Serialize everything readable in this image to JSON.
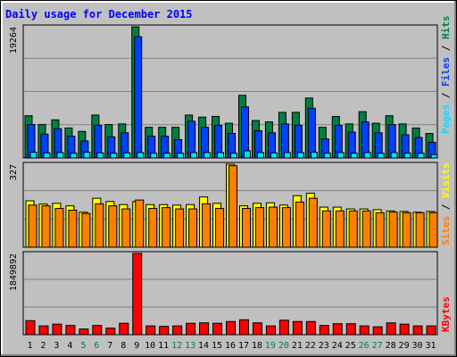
{
  "title": "Daily usage for December 2015",
  "colors": {
    "hits": "#008040",
    "files": "#0040ff",
    "pages": "#00e0ff",
    "visits": "#ffff00",
    "sites": "#ff8000",
    "kbytes": "#ff0000",
    "background": "#c0c0c0",
    "weekend_label": "#008040",
    "weekday_label": "#000000",
    "title": "#0000ff"
  },
  "chart_data": [
    {
      "type": "bar",
      "title": "Daily usage for December 2015",
      "ylabel": "Pages / Files / Hits",
      "ymax_label": "19264",
      "ylim": [
        0,
        19264
      ],
      "categories": [
        "1",
        "2",
        "3",
        "4",
        "5",
        "6",
        "7",
        "8",
        "9",
        "10",
        "11",
        "12",
        "13",
        "14",
        "15",
        "16",
        "17",
        "18",
        "19",
        "20",
        "21",
        "22",
        "23",
        "24",
        "25",
        "26",
        "27",
        "28",
        "29",
        "30",
        "31"
      ],
      "weekend_days": [
        "5",
        "6",
        "12",
        "13",
        "19",
        "20",
        "26",
        "27"
      ],
      "series": [
        {
          "name": "Hits",
          "values": [
            6200,
            4900,
            5600,
            4400,
            3900,
            6300,
            4900,
            5000,
            19264,
            4500,
            4500,
            4500,
            6300,
            6000,
            6100,
            5100,
            9200,
            5500,
            5300,
            6700,
            6700,
            8800,
            4500,
            6100,
            5000,
            6800,
            5100,
            6200,
            5000,
            4400,
            3600
          ]
        },
        {
          "name": "Files",
          "values": [
            4900,
            3500,
            4300,
            3200,
            2500,
            4800,
            3100,
            3700,
            17800,
            3200,
            3200,
            2700,
            5400,
            4500,
            4800,
            3600,
            7500,
            4000,
            3700,
            5000,
            4800,
            7300,
            2800,
            4800,
            3800,
            5300,
            3700,
            4900,
            3400,
            3000,
            2300
          ]
        },
        {
          "name": "Pages",
          "values": [
            850,
            750,
            800,
            700,
            850,
            750,
            700,
            750,
            800,
            700,
            700,
            700,
            800,
            800,
            800,
            700,
            1050,
            800,
            750,
            800,
            800,
            850,
            700,
            800,
            700,
            800,
            700,
            800,
            700,
            700,
            500
          ]
        }
      ]
    },
    {
      "type": "bar",
      "ylabel": "Sites / Visits",
      "ymax_label": "327",
      "ylim": [
        0,
        327
      ],
      "categories": [
        "1",
        "2",
        "3",
        "4",
        "5",
        "6",
        "7",
        "8",
        "9",
        "10",
        "11",
        "12",
        "13",
        "14",
        "15",
        "16",
        "17",
        "18",
        "19",
        "20",
        "21",
        "22",
        "23",
        "24",
        "25",
        "26",
        "27",
        "28",
        "29",
        "30",
        "31"
      ],
      "series": [
        {
          "name": "Visits",
          "values": [
            183,
            170,
            173,
            163,
            138,
            193,
            180,
            168,
            180,
            168,
            168,
            166,
            168,
            198,
            173,
            327,
            163,
            173,
            175,
            166,
            203,
            213,
            158,
            158,
            151,
            151,
            148,
            143,
            141,
            138,
            141
          ]
        },
        {
          "name": "Sites",
          "values": [
            166,
            163,
            153,
            146,
            133,
            171,
            163,
            151,
            186,
            153,
            156,
            151,
            151,
            171,
            153,
            321,
            153,
            156,
            158,
            156,
            178,
            193,
            143,
            143,
            143,
            143,
            136,
            138,
            136,
            136,
            136
          ]
        }
      ]
    },
    {
      "type": "bar",
      "ylabel": "KBytes",
      "ymax_label": "1849892",
      "ylim": [
        0,
        1849892
      ],
      "categories": [
        "1",
        "2",
        "3",
        "4",
        "5",
        "6",
        "7",
        "8",
        "9",
        "10",
        "11",
        "12",
        "13",
        "14",
        "15",
        "16",
        "17",
        "18",
        "19",
        "20",
        "21",
        "22",
        "23",
        "24",
        "25",
        "26",
        "27",
        "28",
        "29",
        "30",
        "31"
      ],
      "series": [
        {
          "name": "KBytes",
          "values": [
            320000,
            200000,
            240000,
            210000,
            130000,
            210000,
            150000,
            260000,
            1849892,
            200000,
            190000,
            200000,
            260000,
            270000,
            260000,
            300000,
            340000,
            270000,
            200000,
            330000,
            300000,
            300000,
            210000,
            250000,
            250000,
            200000,
            180000,
            270000,
            240000,
            200000,
            200000
          ]
        }
      ]
    }
  ]
}
